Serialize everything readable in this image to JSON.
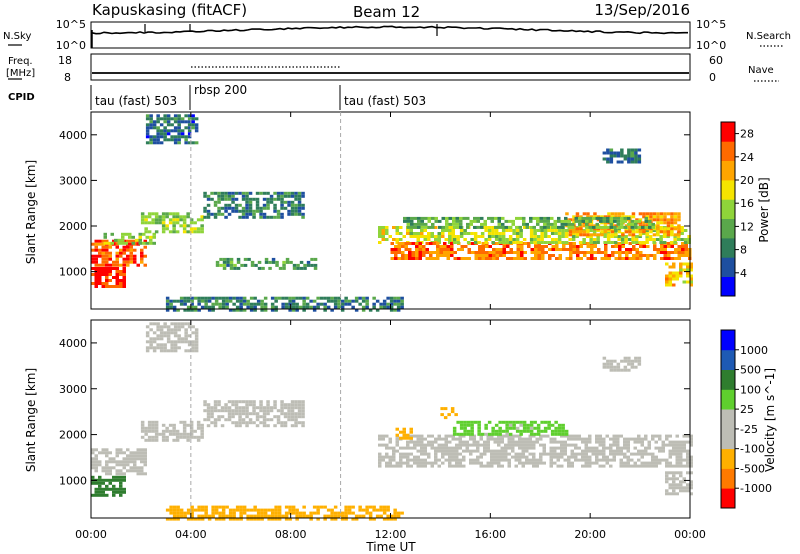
{
  "header": {
    "station": "Kapuskasing (fitACF)",
    "beam": "Beam 12",
    "date": "13/Sep/2016"
  },
  "nsky_panel": {
    "left_label": "N.Sky",
    "left_ticks": [
      "10^5",
      "10^0"
    ],
    "right_ticks": [
      "10^5",
      "10^0"
    ],
    "right_label": "N.Search"
  },
  "freq_panel": {
    "left_label_line1": "Freq.",
    "left_label_line2": "[MHz]",
    "left_ticks": [
      "18",
      "8"
    ],
    "right_ticks": [
      "60",
      "0"
    ],
    "right_label": "Nave"
  },
  "cpid": {
    "label": "CPID",
    "segments": [
      {
        "name": "tau (fast) 503",
        "start_hour": 0
      },
      {
        "name": "rbsp 200",
        "start_hour": 4
      },
      {
        "name": "tau (fast) 503",
        "start_hour": 10
      }
    ]
  },
  "colors": {
    "power": [
      "#0000ff",
      "#1e4fa0",
      "#2f7d5a",
      "#5aa84b",
      "#8fd43a",
      "#f5e400",
      "#ffa500",
      "#ff6a00",
      "#ff0000"
    ],
    "velocity": [
      "#ff0000",
      "#ff7a00",
      "#ffb000",
      "#bdbdb5",
      "#bdbdb5",
      "#5fcf2e",
      "#2f7d2f",
      "#1e5ab4",
      "#0000ff"
    ]
  },
  "chart_data": [
    {
      "type": "heatmap",
      "title": "Power",
      "ylabel": "Slant Range [km]",
      "xlabel": "",
      "xlim_hours": [
        0,
        24
      ],
      "ylim_km": [
        180,
        4500
      ],
      "yticks": [
        "1000",
        "2000",
        "3000",
        "4000"
      ],
      "colorbar": {
        "label": "Power [dB]",
        "ticks": [
          "4",
          "8",
          "12",
          "16",
          "20",
          "24",
          "28"
        ],
        "range": [
          0,
          30
        ]
      },
      "echo_regions": [
        {
          "t0": 0.0,
          "t1": 2.2,
          "r0": 1150,
          "r1": 1700,
          "value": 26
        },
        {
          "t0": 0.0,
          "t1": 1.4,
          "r0": 650,
          "r1": 1100,
          "value": 28
        },
        {
          "t0": 0.5,
          "t1": 2.5,
          "r0": 1650,
          "r1": 1850,
          "value": 14
        },
        {
          "t0": 2.0,
          "t1": 4.5,
          "r0": 1900,
          "r1": 2300,
          "value": 14
        },
        {
          "t0": 4.5,
          "t1": 8.5,
          "r0": 2200,
          "r1": 2750,
          "value": 8
        },
        {
          "t0": 2.2,
          "t1": 4.3,
          "r0": 3800,
          "r1": 4450,
          "value": 7
        },
        {
          "t0": 5.0,
          "t1": 9.0,
          "r0": 1050,
          "r1": 1300,
          "value": 10
        },
        {
          "t0": 3.0,
          "t1": 12.5,
          "r0": 180,
          "r1": 450,
          "value": 8
        },
        {
          "t0": 11.5,
          "t1": 14.5,
          "r0": 1650,
          "r1": 2000,
          "value": 17
        },
        {
          "t0": 12.0,
          "t1": 24.0,
          "r0": 1300,
          "r1": 1650,
          "value": 24
        },
        {
          "t0": 14.5,
          "t1": 24.0,
          "r0": 1650,
          "r1": 2000,
          "value": 16
        },
        {
          "t0": 19.0,
          "t1": 23.5,
          "r0": 1800,
          "r1": 2300,
          "value": 22
        },
        {
          "t0": 12.5,
          "t1": 22.5,
          "r0": 2000,
          "r1": 2200,
          "value": 12
        },
        {
          "t0": 20.5,
          "t1": 22.0,
          "r0": 3400,
          "r1": 3700,
          "value": 7
        },
        {
          "t0": 23.0,
          "t1": 24.0,
          "r0": 700,
          "r1": 1200,
          "value": 20
        }
      ]
    },
    {
      "type": "heatmap",
      "title": "Velocity",
      "ylabel": "Slant Range [km]",
      "xlabel": "Time UT",
      "xlim_hours": [
        0,
        24
      ],
      "ylim_km": [
        180,
        4500
      ],
      "yticks": [
        "1000",
        "2000",
        "3000",
        "4000"
      ],
      "xticks": [
        "00:00",
        "04:00",
        "08:00",
        "12:00",
        "16:00",
        "20:00",
        "00:00"
      ],
      "colorbar": {
        "label": "Velocity [m s^-1]",
        "ticks": [
          "1000",
          "500",
          "100",
          "25",
          "-25",
          "-100",
          "-500",
          "-1000"
        ]
      },
      "echo_regions": [
        {
          "t0": 0.0,
          "t1": 2.2,
          "r0": 1150,
          "r1": 1700,
          "value": 0
        },
        {
          "t0": 0.0,
          "t1": 1.4,
          "r0": 650,
          "r1": 1100,
          "value": 150
        },
        {
          "t0": 2.0,
          "t1": 4.5,
          "r0": 1900,
          "r1": 2300,
          "value": 0
        },
        {
          "t0": 4.5,
          "t1": 8.5,
          "r0": 2200,
          "r1": 2750,
          "value": -50
        },
        {
          "t0": 2.2,
          "t1": 4.3,
          "r0": 3800,
          "r1": 4450,
          "value": 0
        },
        {
          "t0": 3.0,
          "t1": 12.5,
          "r0": 180,
          "r1": 450,
          "value": -120
        },
        {
          "t0": 11.5,
          "t1": 24.0,
          "r0": 1300,
          "r1": 2000,
          "value": 0
        },
        {
          "t0": 14.5,
          "t1": 19.0,
          "r0": 2000,
          "r1": 2300,
          "value": 40
        },
        {
          "t0": 14.0,
          "t1": 14.6,
          "r0": 2400,
          "r1": 2600,
          "value": -300
        },
        {
          "t0": 12.2,
          "t1": 12.8,
          "r0": 1900,
          "r1": 2150,
          "value": -300
        },
        {
          "t0": 20.5,
          "t1": 22.0,
          "r0": 3400,
          "r1": 3700,
          "value": 0
        },
        {
          "t0": 23.0,
          "t1": 24.0,
          "r0": 700,
          "r1": 1200,
          "value": 0
        }
      ]
    }
  ]
}
